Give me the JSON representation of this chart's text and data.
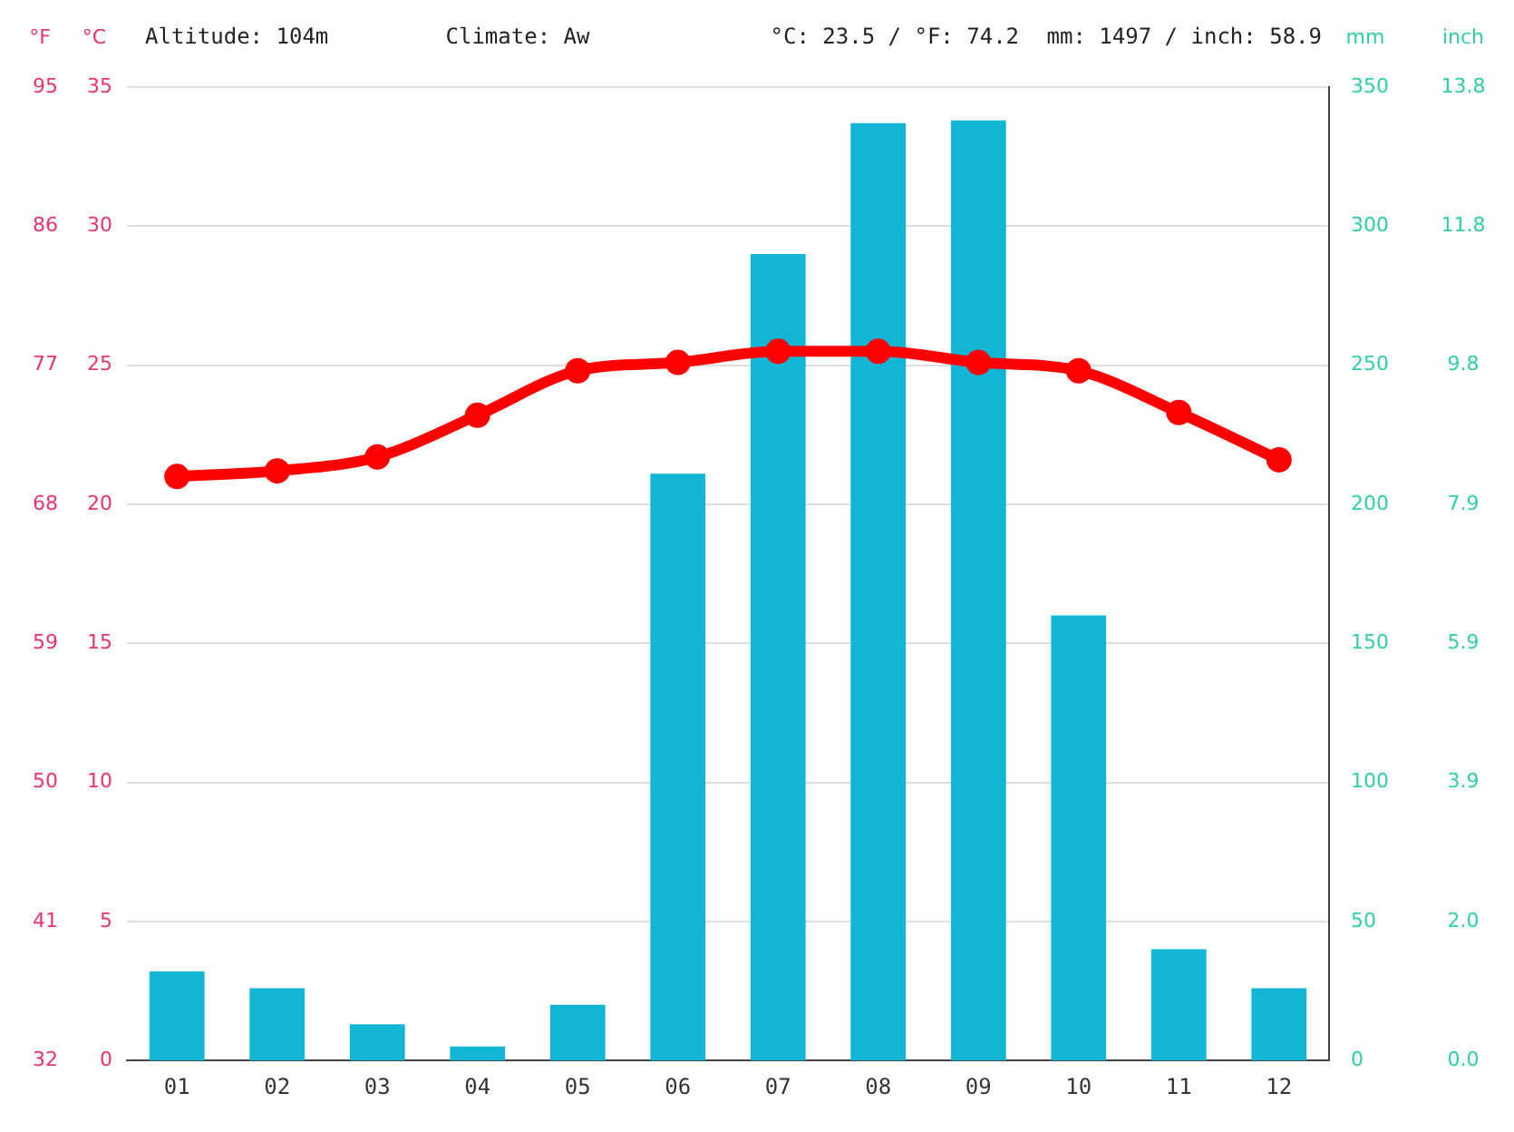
{
  "chart_data": {
    "type": "bar",
    "categories": [
      "01",
      "02",
      "03",
      "04",
      "05",
      "06",
      "07",
      "08",
      "09",
      "10",
      "11",
      "12"
    ],
    "series": [
      {
        "axis": "y2",
        "color": "#12b5d3",
        "values": [
          32,
          26,
          13,
          5,
          20,
          211,
          290,
          337,
          338,
          160,
          40,
          26
        ]
      },
      {
        "type": "line",
        "axis": "y",
        "color": "#ff0000",
        "values": [
          21.0,
          21.2,
          21.7,
          23.2,
          24.8,
          25.1,
          25.5,
          25.5,
          25.1,
          24.8,
          23.3,
          21.6
        ]
      }
    ],
    "ylabel": "°C",
    "y2label": "mm",
    "y3label": "°F",
    "ylim": [
      0,
      35
    ],
    "yticks": [
      0,
      5,
      10,
      15,
      20,
      25,
      30,
      35
    ],
    "y2lim": [
      0,
      350
    ],
    "y2ticks": [
      0,
      50,
      100,
      150,
      200,
      250,
      300,
      350
    ],
    "y3lim": [
      32,
      95
    ],
    "y3ticks": [
      32,
      41,
      50,
      59,
      68,
      77,
      86,
      95
    ],
    "annotations": [
      "Altitude: 104m",
      "Climate: Aw",
      "°C: 23.5 / °F: 74.2",
      "mm: 1497 / inch: 58.9",
      "inch",
      "0.0",
      "2.0",
      "3.9",
      "5.9",
      "7.9",
      "9.8",
      "11.8",
      "13.8"
    ],
    "grid": "y",
    "legend": false,
    "marker": "circle",
    "line_style": "solid"
  }
}
